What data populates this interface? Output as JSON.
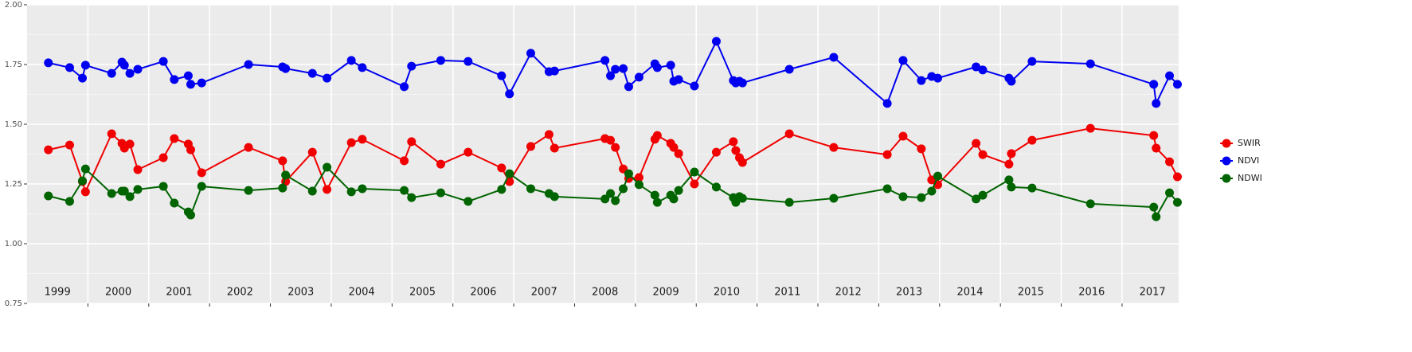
{
  "chart_data": {
    "type": "line",
    "x": [
      1999.35,
      1999.7,
      1999.91,
      1999.96,
      2000.39,
      2000.56,
      2000.6,
      2000.69,
      2000.82,
      2001.24,
      2001.42,
      2001.65,
      2001.69,
      2001.87,
      2002.64,
      2003.2,
      2003.25,
      2003.69,
      2003.93,
      2004.33,
      2004.51,
      2005.2,
      2005.32,
      2005.8,
      2006.25,
      2006.8,
      2006.93,
      2007.28,
      2007.58,
      2007.67,
      2008.5,
      2008.59,
      2008.67,
      2008.8,
      2008.89,
      2009.06,
      2009.32,
      2009.36,
      2009.58,
      2009.63,
      2009.71,
      2009.97,
      2010.33,
      2010.61,
      2010.65,
      2010.71,
      2010.76,
      2011.53,
      2012.26,
      2013.14,
      2013.4,
      2013.7,
      2013.87,
      2013.97,
      2014.6,
      2014.71,
      2015.14,
      2015.18,
      2015.52,
      2016.48,
      2017.52,
      2017.56,
      2017.78,
      2017.91
    ],
    "series": [
      {
        "name": "SWIR",
        "color": "#f00000",
        "values": [
          1.393,
          1.413,
          1.26,
          1.217,
          1.46,
          1.42,
          1.4,
          1.417,
          1.31,
          1.36,
          1.44,
          1.417,
          1.393,
          1.297,
          1.403,
          1.347,
          1.26,
          1.383,
          1.227,
          1.423,
          1.437,
          1.347,
          1.427,
          1.333,
          1.383,
          1.317,
          1.26,
          1.407,
          1.457,
          1.4,
          1.44,
          1.433,
          1.403,
          1.313,
          1.273,
          1.277,
          1.437,
          1.453,
          1.42,
          1.403,
          1.377,
          1.25,
          1.383,
          1.427,
          1.39,
          1.36,
          1.34,
          1.46,
          1.403,
          1.373,
          1.45,
          1.397,
          1.267,
          1.247,
          1.42,
          1.373,
          1.333,
          1.377,
          1.433,
          1.483,
          1.453,
          1.4,
          1.343,
          1.28
        ]
      },
      {
        "name": "NDVI",
        "color": "#0000f0",
        "values": [
          1.757,
          1.737,
          1.693,
          1.747,
          1.713,
          1.76,
          1.747,
          1.713,
          1.73,
          1.763,
          1.687,
          1.703,
          1.667,
          1.673,
          1.75,
          1.74,
          1.733,
          1.713,
          1.693,
          1.767,
          1.737,
          1.657,
          1.743,
          1.767,
          1.763,
          1.703,
          1.627,
          1.797,
          1.72,
          1.723,
          1.767,
          1.703,
          1.73,
          1.733,
          1.657,
          1.697,
          1.753,
          1.737,
          1.747,
          1.68,
          1.687,
          1.66,
          1.847,
          1.683,
          1.673,
          1.68,
          1.673,
          1.73,
          1.78,
          1.587,
          1.767,
          1.683,
          1.7,
          1.693,
          1.74,
          1.727,
          1.693,
          1.68,
          1.763,
          1.753,
          1.667,
          1.587,
          1.703,
          1.667
        ]
      },
      {
        "name": "NDWI",
        "color": "#006400",
        "values": [
          1.2,
          1.177,
          1.263,
          1.313,
          1.21,
          1.22,
          1.22,
          1.197,
          1.227,
          1.24,
          1.17,
          1.133,
          1.12,
          1.24,
          1.223,
          1.233,
          1.287,
          1.22,
          1.32,
          1.217,
          1.23,
          1.223,
          1.193,
          1.213,
          1.177,
          1.227,
          1.293,
          1.23,
          1.21,
          1.197,
          1.187,
          1.21,
          1.18,
          1.23,
          1.293,
          1.247,
          1.203,
          1.173,
          1.203,
          1.187,
          1.223,
          1.3,
          1.237,
          1.193,
          1.173,
          1.197,
          1.19,
          1.173,
          1.19,
          1.23,
          1.197,
          1.193,
          1.22,
          1.283,
          1.187,
          1.203,
          1.267,
          1.237,
          1.233,
          1.167,
          1.153,
          1.113,
          1.213,
          1.173
        ]
      }
    ],
    "xlim": [
      1999.0,
      2017.93
    ],
    "xticks": [
      {
        "value": 1999.5,
        "label": "1999"
      },
      {
        "value": 2000.5,
        "label": "2000"
      },
      {
        "value": 2001.5,
        "label": "2001"
      },
      {
        "value": 2002.5,
        "label": "2002"
      },
      {
        "value": 2003.5,
        "label": "2003"
      },
      {
        "value": 2004.5,
        "label": "2004"
      },
      {
        "value": 2005.5,
        "label": "2005"
      },
      {
        "value": 2006.5,
        "label": "2006"
      },
      {
        "value": 2007.5,
        "label": "2007"
      },
      {
        "value": 2008.5,
        "label": "2008"
      },
      {
        "value": 2009.5,
        "label": "2009"
      },
      {
        "value": 2010.5,
        "label": "2010"
      },
      {
        "value": 2011.5,
        "label": "2011"
      },
      {
        "value": 2012.5,
        "label": "2012"
      },
      {
        "value": 2013.5,
        "label": "2013"
      },
      {
        "value": 2014.5,
        "label": "2014"
      },
      {
        "value": 2015.5,
        "label": "2015"
      },
      {
        "value": 2016.5,
        "label": "2016"
      },
      {
        "value": 2017.5,
        "label": "2017"
      }
    ],
    "xgrid": [
      2000,
      2001,
      2002,
      2003,
      2004,
      2005,
      2006,
      2007,
      2008,
      2009,
      2010,
      2011,
      2012,
      2013,
      2014,
      2015,
      2016,
      2017
    ],
    "ylim": [
      0.75,
      2.0
    ],
    "yticks": [
      {
        "value": 0.75,
        "label": "0.75"
      },
      {
        "value": 1.0,
        "label": "1.00"
      },
      {
        "value": 1.25,
        "label": "1.25"
      },
      {
        "value": 1.5,
        "label": "1.50"
      },
      {
        "value": 1.75,
        "label": "1.75"
      },
      {
        "value": 2.0,
        "label": "2.00"
      }
    ],
    "grid": true,
    "legend": "right"
  }
}
